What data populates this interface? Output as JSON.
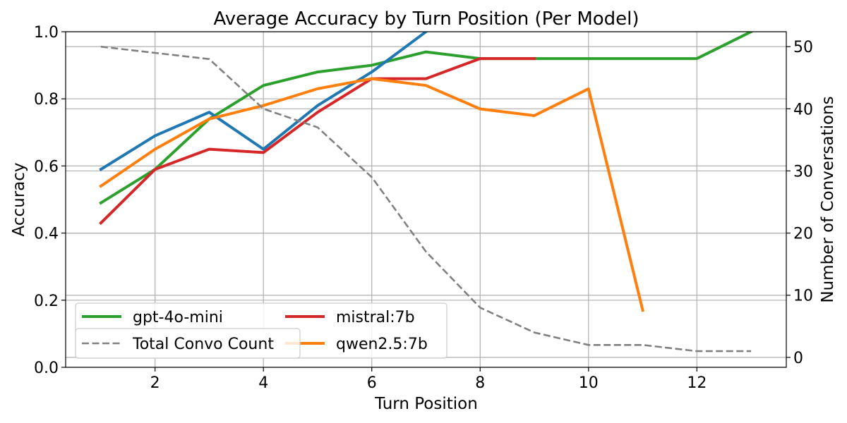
{
  "chart_data": {
    "type": "line",
    "title": "Average Accuracy by Turn Position (Per Model)",
    "xlabel": "Turn Position",
    "ylabel": "Accuracy",
    "y2label": "Number of Conversations",
    "xlim": [
      0.35,
      13.65
    ],
    "ylim": [
      0.0,
      1.0
    ],
    "y2lim": [
      -1.6,
      52.4
    ],
    "xticks": [
      2,
      4,
      6,
      8,
      10,
      12
    ],
    "yticks": [
      0.0,
      0.2,
      0.4,
      0.6,
      0.8,
      1.0
    ],
    "y2ticks": [
      0,
      10,
      20,
      30,
      40,
      50
    ],
    "grid": true,
    "legend_position": "lower-left",
    "series": [
      {
        "name": "gpt-4o-mini",
        "color": "#2ca02c",
        "axis": "left",
        "style": "solid",
        "x": [
          1,
          2,
          3,
          4,
          5,
          6,
          7,
          8,
          9,
          10,
          11,
          12,
          13
        ],
        "y": [
          0.49,
          0.59,
          0.74,
          0.84,
          0.88,
          0.9,
          0.94,
          0.92,
          0.92,
          0.92,
          0.92,
          0.92,
          1.0
        ]
      },
      {
        "name": "",
        "color": "#1f77b4",
        "axis": "left",
        "style": "solid",
        "x": [
          1,
          2,
          3,
          4,
          5,
          6,
          7
        ],
        "y": [
          0.59,
          0.69,
          0.76,
          0.65,
          0.78,
          0.88,
          1.0
        ]
      },
      {
        "name": "mistral:7b",
        "color": "#d62728",
        "axis": "left",
        "style": "solid",
        "x": [
          1,
          2,
          3,
          4,
          5,
          6,
          7,
          8,
          9
        ],
        "y": [
          0.43,
          0.59,
          0.65,
          0.64,
          0.76,
          0.86,
          0.86,
          0.92,
          0.92
        ]
      },
      {
        "name": "qwen2.5:7b",
        "color": "#ff7f0e",
        "axis": "left",
        "style": "solid",
        "x": [
          1,
          2,
          3,
          4,
          5,
          6,
          7,
          8,
          9,
          10,
          11
        ],
        "y": [
          0.54,
          0.65,
          0.74,
          0.78,
          0.83,
          0.86,
          0.84,
          0.77,
          0.75,
          0.83,
          0.17
        ]
      },
      {
        "name": "Total Convo Count",
        "color": "#808080",
        "axis": "right",
        "style": "dashed",
        "x": [
          1,
          2,
          3,
          4,
          5,
          6,
          7,
          8,
          9,
          10,
          11,
          12,
          13
        ],
        "y": [
          50,
          49,
          48,
          40,
          37,
          29,
          17,
          8,
          4,
          2,
          2,
          1,
          1
        ]
      }
    ],
    "legend": [
      {
        "label": "gpt-4o-mini",
        "color": "#2ca02c",
        "style": "solid"
      },
      {
        "label": "mistral:7b",
        "color": "#d62728",
        "style": "solid"
      },
      {
        "label": "qwen2.5:7b",
        "color": "#ff7f0e",
        "style": "solid"
      },
      {
        "label": "Total Convo Count",
        "color": "#808080",
        "style": "dashed"
      }
    ]
  }
}
